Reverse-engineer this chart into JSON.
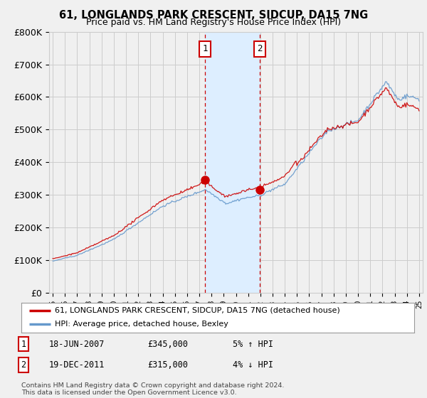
{
  "title": "61, LONGLANDS PARK CRESCENT, SIDCUP, DA15 7NG",
  "subtitle": "Price paid vs. HM Land Registry's House Price Index (HPI)",
  "legend_line1": "61, LONGLANDS PARK CRESCENT, SIDCUP, DA15 7NG (detached house)",
  "legend_line2": "HPI: Average price, detached house, Bexley",
  "table_rows": [
    {
      "num": "1",
      "date": "18-JUN-2007",
      "price": "£345,000",
      "hpi": "5% ↑ HPI"
    },
    {
      "num": "2",
      "date": "19-DEC-2011",
      "price": "£315,000",
      "hpi": "4% ↓ HPI"
    }
  ],
  "footer": "Contains HM Land Registry data © Crown copyright and database right 2024.\nThis data is licensed under the Open Government Licence v3.0.",
  "sale1_year": 2007.46,
  "sale1_price": 345000,
  "sale2_year": 2011.96,
  "sale2_price": 315000,
  "vline1": 2007.46,
  "vline2": 2011.96,
  "ylim": [
    0,
    800000
  ],
  "yticks": [
    0,
    100000,
    200000,
    300000,
    400000,
    500000,
    600000,
    700000,
    800000
  ],
  "red_line_color": "#cc0000",
  "blue_line_color": "#6699cc",
  "shade_color": "#ddeeff",
  "background_color": "#f0f0f0",
  "grid_color": "#cccccc"
}
